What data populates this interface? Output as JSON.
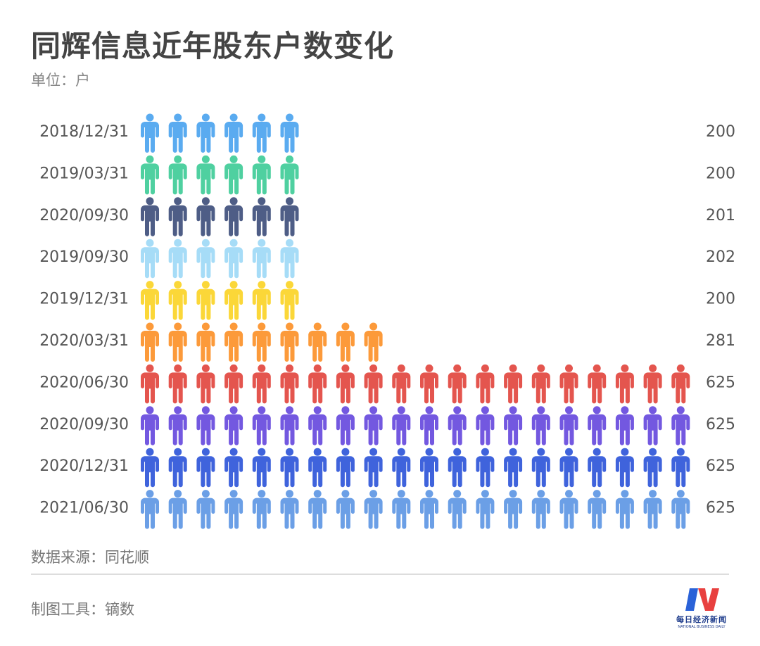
{
  "title": "同辉信息近年股东户数变化",
  "unit": "单位：户",
  "source": "数据来源：同花顺",
  "tool": "制图工具：镝数",
  "logo": {
    "cn": "每日经济新闻",
    "en": "NATIONAL BUSINESS DAILY",
    "colors": [
      "#2a62d8",
      "#e8403f"
    ]
  },
  "chart_data": {
    "type": "pictogram",
    "icon": "person-icon",
    "categories": [
      "2018/12/31",
      "2019/03/31",
      "2020/09/30",
      "2019/09/30",
      "2019/12/31",
      "2020/03/31",
      "2020/06/30",
      "2020/09/30",
      "2020/12/31",
      "2021/06/30"
    ],
    "values": [
      200,
      200,
      201,
      202,
      200,
      281,
      625,
      625,
      625,
      625
    ],
    "value_labels": [
      "200",
      "200",
      "201",
      "202",
      "200",
      "281",
      "625",
      "625",
      "625",
      "625"
    ],
    "icon_counts": [
      6,
      6,
      6,
      6,
      6,
      9,
      20,
      20,
      20,
      20
    ],
    "colors": [
      "#5aabf0",
      "#4fd0a0",
      "#4e5d86",
      "#a6dcf7",
      "#fbd738",
      "#fc9a3a",
      "#e4554e",
      "#7358e0",
      "#3f63dc",
      "#6b9fe6"
    ]
  }
}
